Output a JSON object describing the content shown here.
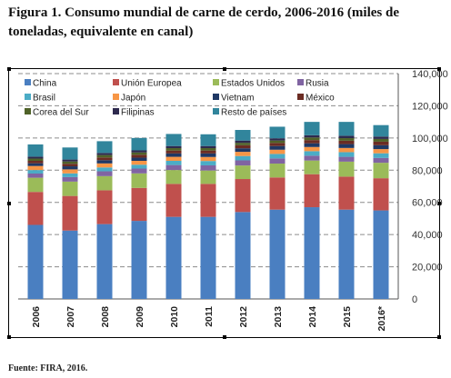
{
  "figure": {
    "title": "Figura 1. Consumo mundial de carne de cerdo, 2006-2016 (miles de toneladas, equivalente en canal)",
    "source": "Fuente: FIRA, 2016."
  },
  "chart_data": {
    "type": "bar",
    "stacked": true,
    "categories": [
      "2006",
      "2007",
      "2008",
      "2009",
      "2010",
      "2011",
      "2012",
      "2013",
      "2014",
      "2015",
      "2016*"
    ],
    "ylim": [
      0,
      140000
    ],
    "yticks": [
      0,
      20000,
      40000,
      60000,
      80000,
      100000,
      120000,
      140000
    ],
    "ytick_labels": [
      "0",
      "20,000",
      "40,000",
      "60,000",
      "80,000",
      "100,000",
      "120,000",
      "140,000"
    ],
    "grid": true,
    "legend_position": "top-left",
    "series": [
      {
        "name": "China",
        "color": "#4a7fc1",
        "values": [
          46000,
          42500,
          46500,
          48500,
          51000,
          51000,
          54000,
          55500,
          57000,
          55500,
          55000
        ]
      },
      {
        "name": "Unión Europea",
        "color": "#c0504d",
        "values": [
          20500,
          21500,
          21000,
          20500,
          20500,
          20500,
          20500,
          20000,
          20500,
          20500,
          20000
        ]
      },
      {
        "name": "Estados Unidos",
        "color": "#9bbb59",
        "values": [
          8800,
          8900,
          8800,
          9000,
          8600,
          8300,
          8400,
          8600,
          8500,
          9300,
          9600
        ]
      },
      {
        "name": "Rusia",
        "color": "#8064a2",
        "values": [
          2600,
          2800,
          3000,
          3000,
          3100,
          3200,
          3200,
          3200,
          3000,
          3000,
          3000
        ]
      },
      {
        "name": "Brasil",
        "color": "#4bacc6",
        "values": [
          2200,
          2300,
          2400,
          2400,
          2600,
          2700,
          2700,
          2800,
          2800,
          2900,
          2900
        ]
      },
      {
        "name": "Japón",
        "color": "#f79646",
        "values": [
          2500,
          2500,
          2500,
          2400,
          2500,
          2500,
          2600,
          2600,
          2600,
          2600,
          2600
        ]
      },
      {
        "name": "Vietnam",
        "color": "#1f3864",
        "values": [
          1700,
          1900,
          2000,
          2000,
          2100,
          2200,
          2200,
          2300,
          2300,
          2400,
          2400
        ]
      },
      {
        "name": "México",
        "color": "#6b2c23",
        "values": [
          1500,
          1600,
          1700,
          1800,
          1800,
          1800,
          1900,
          1900,
          2000,
          2100,
          2200
        ]
      },
      {
        "name": "Corea del Sur",
        "color": "#4f6228",
        "values": [
          1400,
          1400,
          1500,
          1400,
          1500,
          1500,
          1500,
          1500,
          1600,
          1600,
          1700
        ]
      },
      {
        "name": "Filipinas",
        "color": "#2e2a4e",
        "values": [
          1200,
          1200,
          1300,
          1300,
          1300,
          1300,
          1400,
          1400,
          1400,
          1500,
          1500
        ]
      },
      {
        "name": "Resto de países",
        "color": "#31859c",
        "values": [
          7600,
          7500,
          7300,
          7700,
          7500,
          7300,
          6600,
          7200,
          8300,
          8600,
          7100
        ]
      }
    ]
  }
}
